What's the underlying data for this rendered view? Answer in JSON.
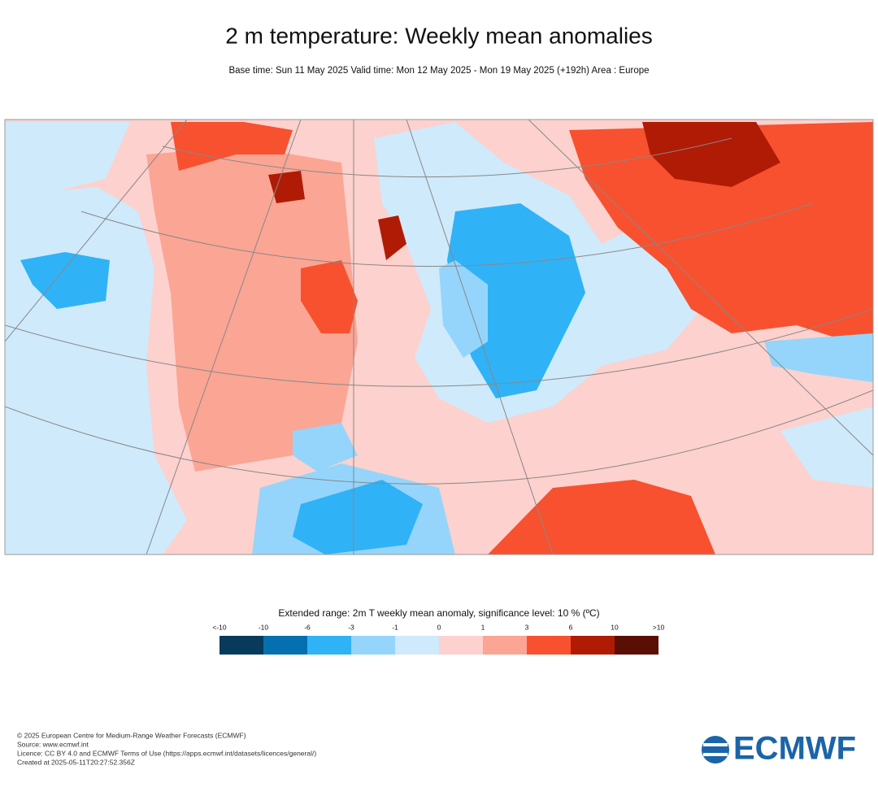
{
  "header": {
    "title": "2 m temperature: Weekly mean anomalies",
    "subtitle": "Base time: Sun 11 May 2025 Valid time: Mon 12 May 2025 - Mon 19 May 2025 (+192h) Area : Europe"
  },
  "legend": {
    "title": "Extended range: 2m T weekly mean anomaly, significance level: 10 % (ºC)",
    "labels": [
      "<-10",
      "-10",
      "-6",
      "-3",
      "-1",
      "0",
      "1",
      "3",
      "6",
      "10",
      ">10"
    ],
    "colors": [
      "#083a5c",
      "#0570b0",
      "#30b2f6",
      "#95d5fb",
      "#cfeafb",
      "#fdd1cd",
      "#fba594",
      "#f7512f",
      "#b01b05",
      "#5a0f05"
    ]
  },
  "footer": {
    "lines": [
      "© 2025 European Centre for Medium-Range Weather Forecasts (ECMWF)",
      "Source: www.ecmwf.int",
      "Licence: CC BY 4.0 and ECMWF Terms of Use (https://apps.ecmwf.int/datasets/licences/general/)",
      "Created at 2025-05-11T20:27:52.356Z"
    ]
  },
  "logo": {
    "text": "ECMWF"
  }
}
